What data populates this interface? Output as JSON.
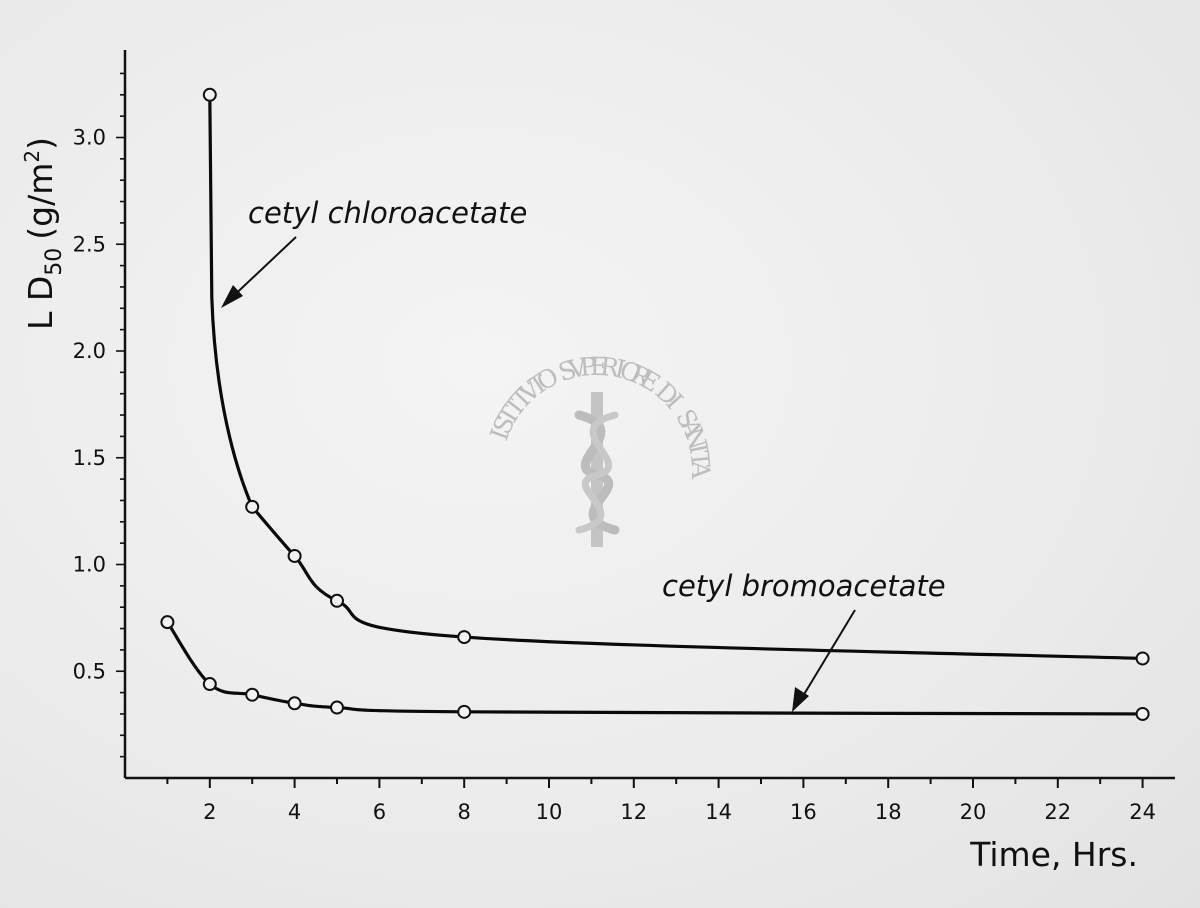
{
  "chart_data": {
    "type": "line",
    "xlabel": "Time, Hrs.",
    "ylabel_main": "L D",
    "ylabel_sub": "50",
    "ylabel_unit": "(g/m",
    "ylabel_sup": "2",
    "ylabel_close": ")",
    "xlim": [
      0,
      24.5
    ],
    "ylim": [
      0,
      3.3
    ],
    "x_ticks": [
      2,
      4,
      6,
      8,
      10,
      12,
      14,
      16,
      18,
      20,
      22,
      24
    ],
    "x_tick_labels": [
      "2",
      "4",
      "6",
      "8",
      "10",
      "12",
      "14",
      "16",
      "18",
      "20",
      "22",
      "24"
    ],
    "y_ticks": [
      0.5,
      1.0,
      1.5,
      2.0,
      2.5,
      3.0
    ],
    "y_tick_labels": [
      "0.5",
      "1.0",
      "1.5",
      "2.0",
      "2.5",
      "3.0"
    ],
    "grid": false,
    "series": [
      {
        "name": "cetyl chloroacetate",
        "x": [
          2,
          3,
          4,
          5,
          8,
          24
        ],
        "y": [
          3.2,
          1.27,
          1.04,
          0.83,
          0.66,
          0.56
        ]
      },
      {
        "name": "cetyl bromoacetate",
        "x": [
          1,
          2,
          3,
          4,
          5,
          8,
          24
        ],
        "y": [
          0.73,
          0.44,
          0.39,
          0.35,
          0.33,
          0.31,
          0.3
        ]
      }
    ]
  },
  "watermark": {
    "text": "ISTITVTO SVPERIORE DI SANITA"
  }
}
